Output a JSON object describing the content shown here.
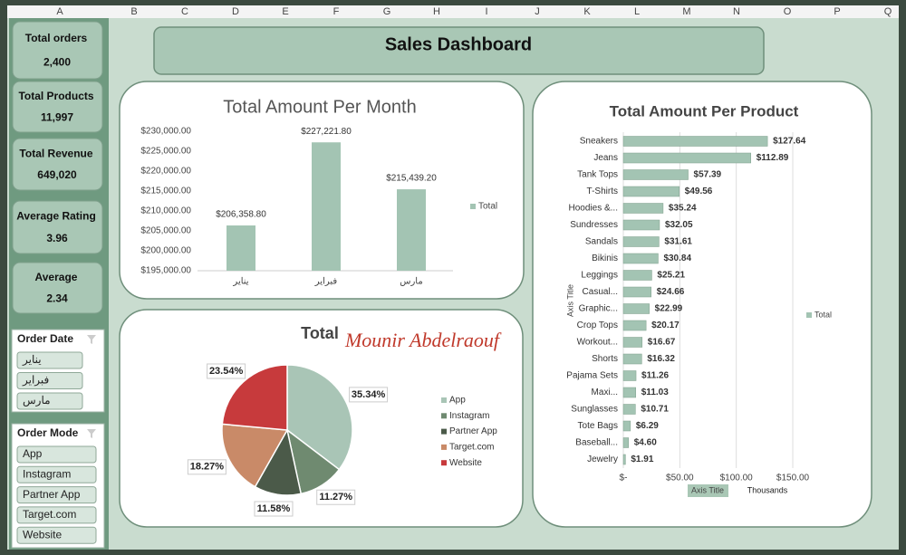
{
  "columns": [
    "A",
    "B",
    "C",
    "D",
    "E",
    "F",
    "G",
    "H",
    "I",
    "J",
    "K",
    "L",
    "M",
    "N",
    "O",
    "P",
    "Q"
  ],
  "kpis": [
    {
      "label": "Total orders",
      "value": "2,400"
    },
    {
      "label": "Total Products",
      "value": "11,997"
    },
    {
      "label": "Total Revenue",
      "value": "649,020"
    },
    {
      "label": "Average Rating",
      "value": "3.96"
    },
    {
      "label": "Average",
      "value": "2.34"
    }
  ],
  "slicers": [
    {
      "title": "Order Date",
      "items": [
        "يناير",
        "فبراير",
        "مارس"
      ]
    },
    {
      "title": "Order Mode",
      "items": [
        "App",
        "Instagram",
        "Partner App",
        "Target.com",
        "Website"
      ]
    }
  ],
  "header": {
    "title": "Sales Dashboard"
  },
  "chart_data": [
    {
      "type": "bar",
      "orientation": "vertical",
      "title": "Total Amount Per Month",
      "categories": [
        "يناير",
        "فبراير",
        "مارس"
      ],
      "series": [
        {
          "name": "Total",
          "color": "#a3c4b3",
          "values": [
            206358.8,
            227221.8,
            215439.2
          ],
          "value_labels": [
            "$206,358.80",
            "$227,221.80",
            "$215,439.20"
          ]
        }
      ],
      "ylim": [
        195000,
        230000
      ],
      "yticks": [
        {
          "value": 195000,
          "label": "$195,000.00"
        },
        {
          "value": 200000,
          "label": "$200,000.00"
        },
        {
          "value": 205000,
          "label": "$205,000.00"
        },
        {
          "value": 210000,
          "label": "$210,000.00"
        },
        {
          "value": 215000,
          "label": "$215,000.00"
        },
        {
          "value": 220000,
          "label": "$220,000.00"
        },
        {
          "value": 225000,
          "label": "$225,000.00"
        },
        {
          "value": 230000,
          "label": "$230,000.00"
        }
      ],
      "grid": false,
      "legend": "right"
    },
    {
      "type": "pie",
      "title": "Total",
      "annotation": "Mounir Abdelraouf",
      "categories": [
        "App",
        "Instagram",
        "Partner App",
        "Target.com",
        "Website"
      ],
      "values": [
        35.34,
        11.27,
        11.58,
        18.27,
        23.54
      ],
      "value_labels": [
        "35.34%",
        "11.27%",
        "11.58%",
        "18.27%",
        "23.54%"
      ],
      "colors": [
        "#a9c5b6",
        "#6f8a70",
        "#4b5a49",
        "#c98a68",
        "#c73a3c"
      ],
      "legend": "right"
    },
    {
      "type": "bar",
      "orientation": "horizontal",
      "title": "Total Amount Per Product",
      "categories": [
        "Sneakers",
        "Jeans",
        "Tank Tops",
        "T-Shirts",
        "Hoodies &...",
        "Sundresses",
        "Sandals",
        "Bikinis",
        "Leggings",
        "Casual...",
        "Graphic...",
        "Crop Tops",
        "Workout...",
        "Shorts",
        "Pajama Sets",
        "Maxi...",
        "Sunglasses",
        "Tote Bags",
        "Baseball...",
        "Jewelry"
      ],
      "series": [
        {
          "name": "Total",
          "color": "#a3c4b3",
          "values": [
            127.64,
            112.89,
            57.39,
            49.56,
            35.24,
            32.05,
            31.61,
            30.84,
            25.21,
            24.66,
            22.99,
            20.17,
            16.67,
            16.32,
            11.26,
            11.03,
            10.71,
            6.29,
            4.6,
            1.91
          ],
          "value_labels": [
            "$127.64",
            "$112.89",
            "$57.39",
            "$49.56",
            "$35.24",
            "$32.05",
            "$31.61",
            "$30.84",
            "$25.21",
            "$24.66",
            "$22.99",
            "$20.17",
            "$16.67",
            "$16.32",
            "$11.26",
            "$11.03",
            "$10.71",
            "$6.29",
            "$4.60",
            "$1.91"
          ]
        }
      ],
      "xlim": [
        0,
        150
      ],
      "xticks": [
        {
          "value": 0,
          "label": "$-"
        },
        {
          "value": 50,
          "label": "$50.00"
        },
        {
          "value": 100,
          "label": "$100.00"
        },
        {
          "value": 150,
          "label": "$150.00"
        }
      ],
      "x_label": "Axis Title",
      "x_unit_label": "Thousands",
      "y_label": "Axis Title",
      "grid": true,
      "legend": "right"
    }
  ]
}
